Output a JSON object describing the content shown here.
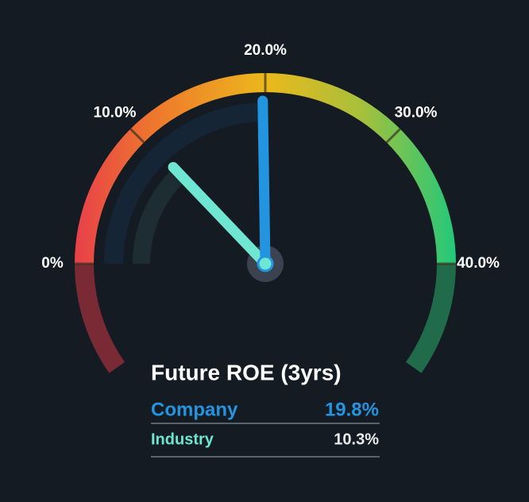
{
  "chart_data": {
    "type": "gauge",
    "title": "Future ROE (3yrs)",
    "ylim": [
      0,
      40
    ],
    "yticks": [
      {
        "value": 0,
        "label": "0%"
      },
      {
        "value": 10,
        "label": "10.0%"
      },
      {
        "value": 20,
        "label": "20.0%"
      },
      {
        "value": 30,
        "label": "30.0%"
      },
      {
        "value": 40,
        "label": "40.0%"
      }
    ],
    "series": [
      {
        "name": "Company",
        "color": "#2394e0",
        "values": [
          19.8
        ],
        "value_labels": [
          "19.8%"
        ]
      },
      {
        "name": "Industry",
        "color": "#6ee6d2",
        "values": [
          10.3
        ],
        "value_labels": [
          "10.3%"
        ]
      }
    ]
  }
}
